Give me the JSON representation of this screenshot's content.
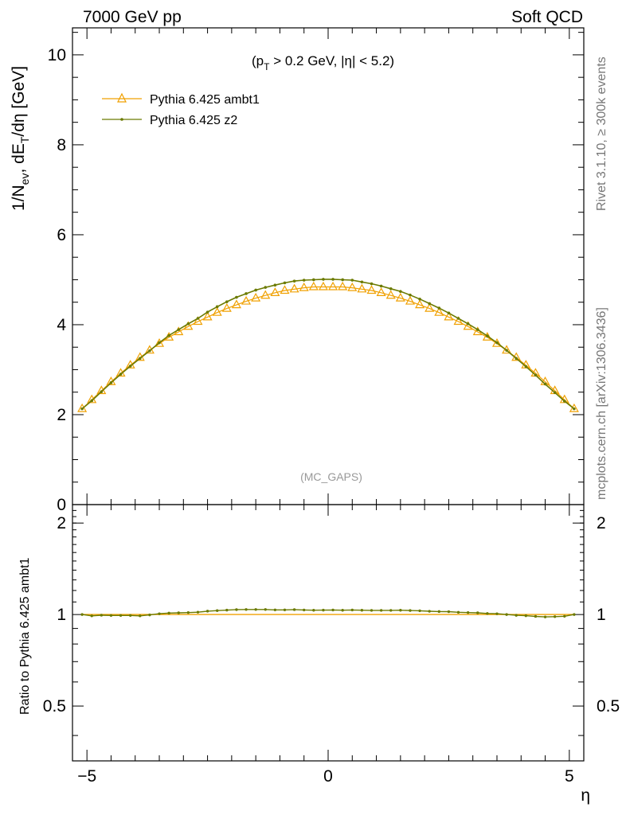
{
  "header": {
    "left": "7000 GeV pp",
    "right": "Soft QCD"
  },
  "side_labels": {
    "rivet": "Rivet 3.1.10, ≥ 300k events",
    "mcplots": "mcplots.cern.ch [arXiv:1306.3436]"
  },
  "chart_data": {
    "type": "line",
    "annotation": "(MC_GAPS)",
    "cut_label": {
      "open": "(p",
      "sub": "T",
      "rest": " > 0.2 GeV, |η| < 5.2)"
    },
    "main": {
      "ylabel": {
        "p1": "1/N",
        "s1": "ev",
        "p2": ", dE",
        "s2": "T",
        "p3": "/dη [GeV]"
      },
      "ylim": [
        0,
        10.6
      ],
      "yticks": [
        0,
        2,
        4,
        6,
        8,
        10
      ],
      "ytick_labels": [
        "0",
        "2",
        "4",
        "6",
        "8",
        "10"
      ]
    },
    "ratio": {
      "ylabel": "Ratio to Pythia 6.425 ambt1",
      "ylim": [
        0.33,
        2.3
      ],
      "yticks": [
        0.5,
        1,
        2
      ],
      "ytick_labels": [
        "0.5",
        "1",
        "2"
      ]
    },
    "xlabel": "η",
    "xlim": [
      -5.3,
      5.3
    ],
    "xticks": [
      -5,
      0,
      5
    ],
    "xtick_labels": [
      "−5",
      "0",
      "5"
    ],
    "legend_position": "top-left",
    "x": [
      -5.1,
      -4.9,
      -4.7,
      -4.5,
      -4.3,
      -4.1,
      -3.9,
      -3.7,
      -3.5,
      -3.3,
      -3.1,
      -2.9,
      -2.7,
      -2.5,
      -2.3,
      -2.1,
      -1.9,
      -1.7,
      -1.5,
      -1.3,
      -1.1,
      -0.9,
      -0.7,
      -0.5,
      -0.3,
      -0.1,
      0.1,
      0.3,
      0.5,
      0.7,
      0.9,
      1.1,
      1.3,
      1.5,
      1.7,
      1.9,
      2.1,
      2.3,
      2.5,
      2.7,
      2.9,
      3.1,
      3.3,
      3.5,
      3.7,
      3.9,
      4.1,
      4.3,
      4.5,
      4.7,
      4.9,
      5.1
    ],
    "series": [
      {
        "name": "Pythia 6.425 ambt1",
        "color": "#f0a000",
        "marker": "open-triangle",
        "values": [
          2.13,
          2.33,
          2.53,
          2.73,
          2.92,
          3.1,
          3.27,
          3.43,
          3.58,
          3.72,
          3.84,
          3.96,
          4.07,
          4.17,
          4.27,
          4.36,
          4.44,
          4.52,
          4.59,
          4.65,
          4.71,
          4.76,
          4.79,
          4.82,
          4.84,
          4.84,
          4.84,
          4.84,
          4.82,
          4.79,
          4.76,
          4.71,
          4.65,
          4.59,
          4.52,
          4.44,
          4.36,
          4.27,
          4.17,
          4.07,
          3.96,
          3.84,
          3.72,
          3.58,
          3.43,
          3.27,
          3.1,
          2.92,
          2.73,
          2.53,
          2.33,
          2.13
        ]
      },
      {
        "name": "Pythia 6.425 z2",
        "color": "#6b7a00",
        "marker": "dot",
        "values": [
          2.13,
          2.31,
          2.51,
          2.71,
          2.9,
          3.08,
          3.25,
          3.42,
          3.6,
          3.76,
          3.89,
          4.02,
          4.14,
          4.28,
          4.4,
          4.51,
          4.61,
          4.69,
          4.77,
          4.83,
          4.88,
          4.93,
          4.97,
          4.99,
          5.0,
          5.01,
          5.01,
          5.0,
          4.99,
          4.95,
          4.91,
          4.86,
          4.8,
          4.74,
          4.66,
          4.57,
          4.47,
          4.37,
          4.26,
          4.14,
          4.02,
          3.89,
          3.75,
          3.6,
          3.43,
          3.25,
          3.07,
          2.88,
          2.68,
          2.49,
          2.3,
          2.13
        ]
      }
    ],
    "ratio_series": [
      {
        "name": "Pythia 6.425 ambt1",
        "color": "#f0a000",
        "values": [
          1,
          1,
          1,
          1,
          1,
          1,
          1,
          1,
          1,
          1,
          1,
          1,
          1,
          1,
          1,
          1,
          1,
          1,
          1,
          1,
          1,
          1,
          1,
          1,
          1,
          1,
          1,
          1,
          1,
          1,
          1,
          1,
          1,
          1,
          1,
          1,
          1,
          1,
          1,
          1,
          1,
          1,
          1,
          1,
          1,
          1,
          1,
          1,
          1,
          1,
          1,
          1
        ]
      },
      {
        "name": "Pythia 6.425 z2",
        "color": "#6b7a00",
        "values": [
          1.0,
          0.99,
          0.995,
          0.993,
          0.993,
          0.993,
          0.99,
          0.997,
          1.006,
          1.011,
          1.013,
          1.015,
          1.018,
          1.026,
          1.03,
          1.034,
          1.038,
          1.039,
          1.039,
          1.039,
          1.036,
          1.036,
          1.038,
          1.035,
          1.033,
          1.034,
          1.035,
          1.033,
          1.035,
          1.033,
          1.032,
          1.032,
          1.032,
          1.033,
          1.031,
          1.029,
          1.025,
          1.023,
          1.022,
          1.017,
          1.015,
          1.013,
          1.008,
          1.006,
          1.0,
          0.994,
          0.991,
          0.986,
          0.982,
          0.984,
          0.987,
          1.0
        ]
      }
    ]
  }
}
